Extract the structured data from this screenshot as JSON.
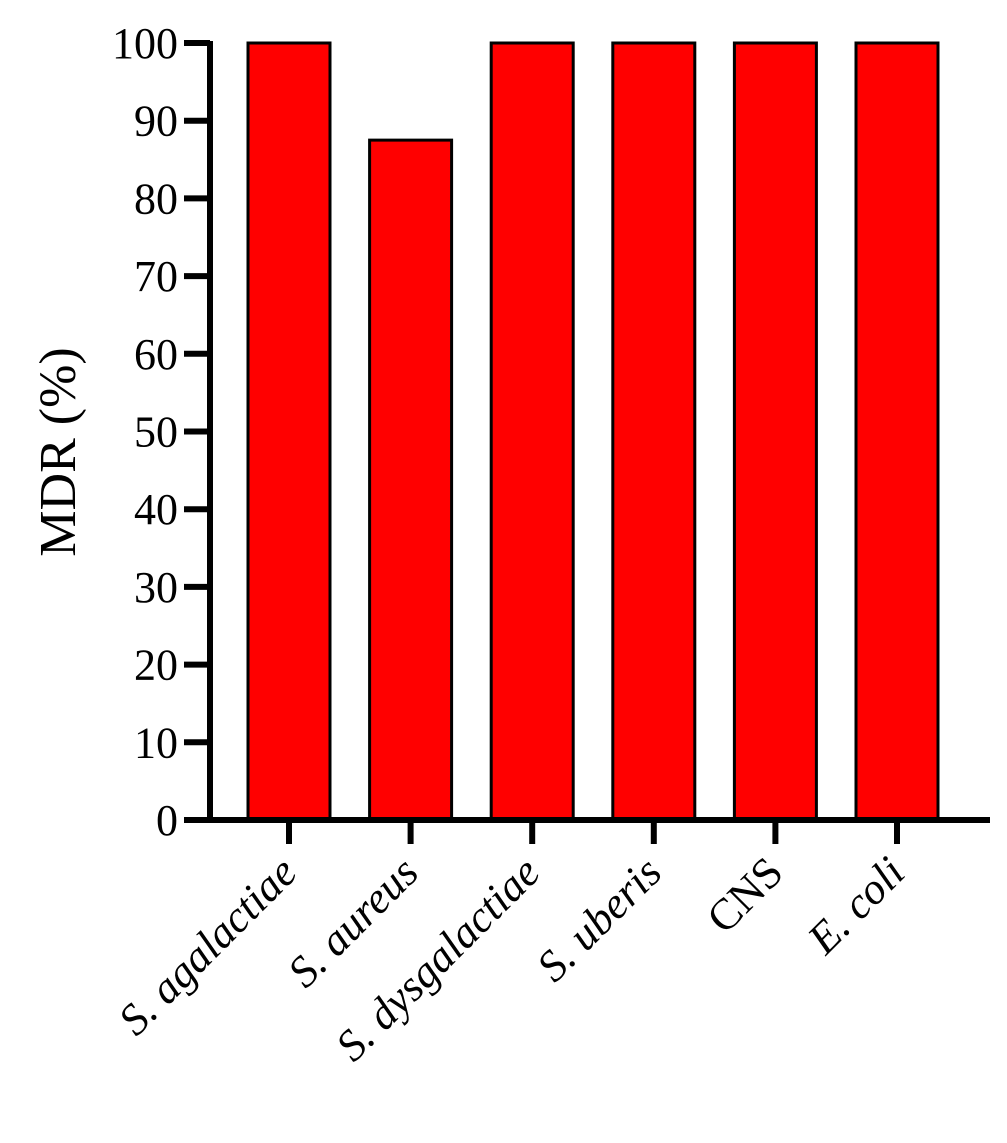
{
  "chart_data": {
    "type": "bar",
    "categories": [
      "S. agalactiae",
      "S. aureus",
      "S. dysgalactiae",
      "S. uberis",
      "CNS",
      "E. coli"
    ],
    "category_italic": [
      true,
      true,
      true,
      true,
      false,
      true
    ],
    "values": [
      100,
      87.5,
      100,
      100,
      100,
      100
    ],
    "title": "",
    "xlabel": "",
    "ylabel": "MDR (%)",
    "ylim": [
      0,
      100
    ],
    "yticks": [
      0,
      10,
      20,
      30,
      40,
      50,
      60,
      70,
      80,
      90,
      100
    ],
    "grid": false,
    "bar_color": "#ff0000",
    "edge_color": "#000000"
  }
}
